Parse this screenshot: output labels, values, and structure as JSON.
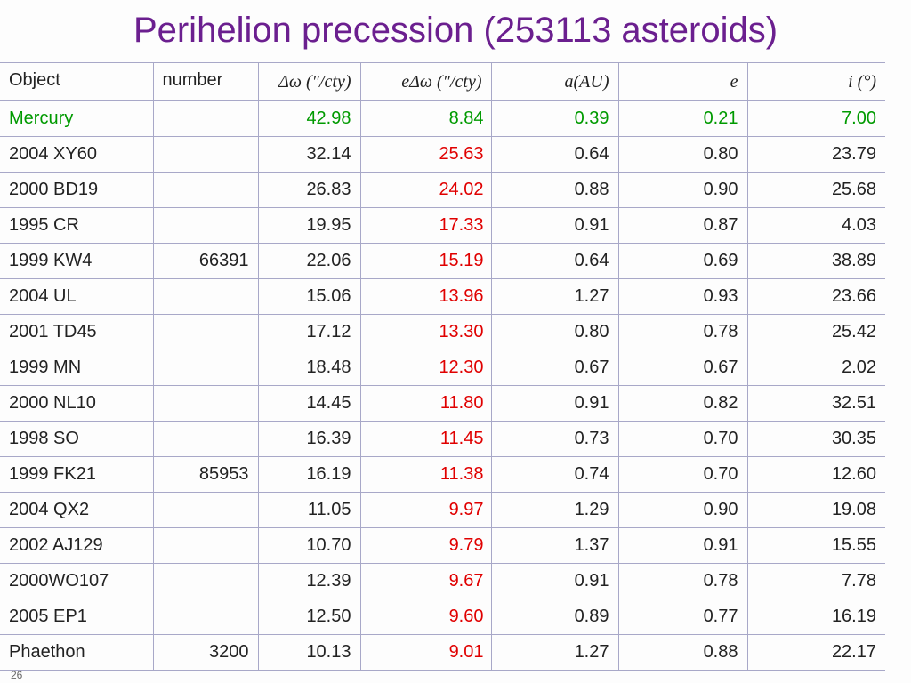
{
  "header": {
    "title": "Perihelion precession (253113 asteroids)"
  },
  "table": {
    "columns": [
      "Object",
      "number",
      "Δω (″/cty)",
      "eΔω (″/cty)",
      "a(AU)",
      "e",
      "i (°)"
    ],
    "rows": [
      [
        "Mercury",
        null,
        "42.98",
        "8.84",
        "0.39",
        "0.21",
        "7.00"
      ],
      [
        "2004 XY60",
        null,
        "32.14",
        "25.63",
        "0.64",
        "0.80",
        "23.79"
      ],
      [
        "2000 BD19",
        null,
        "26.83",
        "24.02",
        "0.88",
        "0.90",
        "25.68"
      ],
      [
        "1995 CR",
        null,
        "19.95",
        "17.33",
        "0.91",
        "0.87",
        "4.03"
      ],
      [
        "1999 KW4",
        "66391",
        "22.06",
        "15.19",
        "0.64",
        "0.69",
        "38.89"
      ],
      [
        "2004 UL",
        null,
        "15.06",
        "13.96",
        "1.27",
        "0.93",
        "23.66"
      ],
      [
        "2001 TD45",
        null,
        "17.12",
        "13.30",
        "0.80",
        "0.78",
        "25.42"
      ],
      [
        "1999 MN",
        null,
        "18.48",
        "12.30",
        "0.67",
        "0.67",
        "2.02"
      ],
      [
        "2000 NL10",
        null,
        "14.45",
        "11.80",
        "0.91",
        "0.82",
        "32.51"
      ],
      [
        "1998 SO",
        null,
        "16.39",
        "11.45",
        "0.73",
        "0.70",
        "30.35"
      ],
      [
        "1999 FK21",
        "85953",
        "16.19",
        "11.38",
        "0.74",
        "0.70",
        "12.60"
      ],
      [
        "2004 QX2",
        null,
        "11.05",
        "9.97",
        "1.29",
        "0.90",
        "19.08"
      ],
      [
        "2002 AJ129",
        null,
        "10.70",
        "9.79",
        "1.37",
        "0.91",
        "15.55"
      ],
      [
        "2000WO107",
        null,
        "12.39",
        "9.67",
        "0.91",
        "0.78",
        "7.78"
      ],
      [
        "2005 EP1",
        null,
        "12.50",
        "9.60",
        "0.89",
        "0.77",
        "16.19"
      ],
      [
        "Phaethon",
        "3200",
        "10.13",
        "9.01",
        "1.27",
        "0.88",
        "22.17"
      ]
    ]
  },
  "footer": {
    "page_number": "26"
  }
}
